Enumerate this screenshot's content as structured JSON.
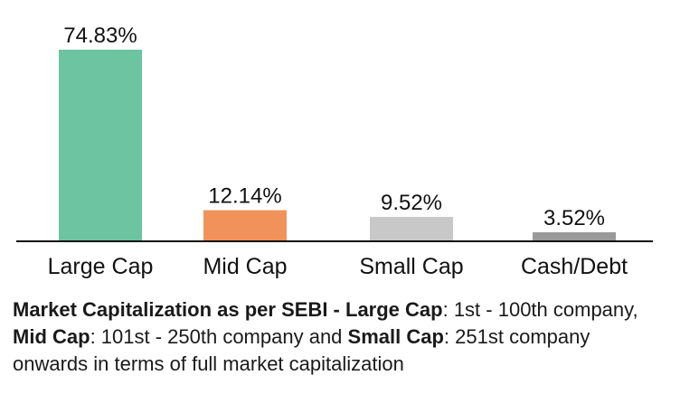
{
  "chart_data": {
    "type": "bar",
    "categories": [
      "Large Cap",
      "Mid Cap",
      "Small Cap",
      "Cash/Debt"
    ],
    "values": [
      74.83,
      12.14,
      9.52,
      3.52
    ],
    "value_labels": [
      "74.83%",
      "12.14%",
      "9.52%",
      "3.52%"
    ],
    "colors": [
      "#6cc4a0",
      "#f0925a",
      "#c8c8c8",
      "#9a9a9a"
    ],
    "baseline_color": "#111111",
    "title": "",
    "xlabel": "",
    "ylabel": "",
    "ylim": [
      0,
      74.83
    ],
    "grid": false,
    "legend": "none"
  },
  "caption": {
    "heading": "Market Capitalization as per SEBI -",
    "large_cap_label": "Large Cap",
    "large_cap_text": ": 1st - 100th company,",
    "mid_cap_label": "Mid Cap",
    "mid_cap_text": ": 101st - 250th company and",
    "small_cap_label": "Small Cap",
    "small_cap_text": ": 251st company onwards in terms of full market capitalization"
  }
}
